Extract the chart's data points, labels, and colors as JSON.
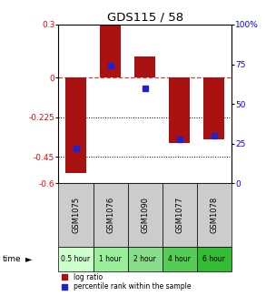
{
  "title": "GDS115 / 58",
  "samples": [
    "GSM1075",
    "GSM1076",
    "GSM1090",
    "GSM1077",
    "GSM1078"
  ],
  "time_labels": [
    "0.5 hour",
    "1 hour",
    "2 hour",
    "4 hour",
    "6 hour"
  ],
  "time_colors": [
    "#ccffcc",
    "#99ee99",
    "#88dd88",
    "#55cc55",
    "#33bb33"
  ],
  "log_ratios": [
    -0.54,
    0.3,
    0.12,
    -0.37,
    -0.35
  ],
  "percentile_ranks": [
    22,
    74,
    60,
    28,
    30
  ],
  "bar_color": "#aa1111",
  "dot_color": "#2222cc",
  "ylim_left": [
    -0.6,
    0.3
  ],
  "ylim_right": [
    0,
    100
  ],
  "yticks_left": [
    0.3,
    0,
    -0.225,
    -0.45,
    -0.6
  ],
  "ytick_labels_left": [
    "0.3",
    "0",
    "-0.225",
    "-0.45",
    "-0.6"
  ],
  "yticks_right": [
    100,
    75,
    50,
    25,
    0
  ],
  "ytick_labels_right": [
    "100%",
    "75",
    "50",
    "25",
    "0"
  ],
  "hlines": [
    0,
    -0.225,
    -0.45
  ],
  "hline_styles": [
    "dashed",
    "dotted",
    "dotted"
  ],
  "hline_colors": [
    "#cc4444",
    "#000000",
    "#000000"
  ],
  "legend_log_label": "log ratio",
  "legend_pct_label": "percentile rank within the sample",
  "sample_bg_color": "#cccccc",
  "bar_width": 0.6,
  "figsize": [
    2.93,
    3.36
  ],
  "dpi": 100
}
